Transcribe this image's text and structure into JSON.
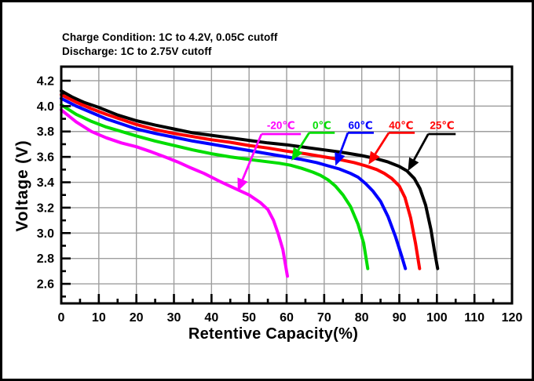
{
  "conditions": {
    "line1": "Charge Condition: 1C to 4.2V, 0.05C cutoff",
    "line2": "Discharge: 1C to 2.75V cutoff"
  },
  "chart_data": {
    "type": "line",
    "title": "",
    "xlabel": "Retentive Capacity(%)",
    "ylabel": "Voltage (V)",
    "xlim": [
      0,
      120
    ],
    "ylim": [
      2.446,
      4.311
    ],
    "grid": true,
    "grid_color": "#9e9e9e",
    "frame_color": "#000000",
    "x_ticks": [
      0,
      10,
      20,
      30,
      40,
      50,
      60,
      70,
      80,
      90,
      100,
      110,
      120
    ],
    "x_minor_ticks": [
      5,
      15,
      25,
      35,
      45,
      55,
      65,
      75,
      85,
      95,
      105,
      115
    ],
    "y_tick_values": [
      4.2,
      4.0,
      3.8,
      3.6,
      3.4,
      3.2,
      3.0,
      2.8,
      2.6
    ],
    "y_tick_labels": [
      "4.2",
      "4.0",
      "3.8",
      "3.6",
      "3.4",
      "3.2",
      "3.0",
      "2.8",
      "2.6"
    ],
    "y_minor_ticks": [
      4.3,
      4.1,
      3.9,
      3.7,
      3.5,
      3.3,
      3.1,
      2.9,
      2.7,
      2.5
    ],
    "legend_position": "inline-arrows",
    "series": [
      {
        "name": "25℃",
        "color": "#000000",
        "points": [
          [
            0,
            4.12
          ],
          [
            3,
            4.07
          ],
          [
            6,
            4.03
          ],
          [
            10,
            3.99
          ],
          [
            15,
            3.93
          ],
          [
            20,
            3.885
          ],
          [
            25,
            3.85
          ],
          [
            30,
            3.82
          ],
          [
            35,
            3.79
          ],
          [
            40,
            3.77
          ],
          [
            45,
            3.75
          ],
          [
            50,
            3.73
          ],
          [
            55,
            3.71
          ],
          [
            60,
            3.695
          ],
          [
            65,
            3.675
          ],
          [
            70,
            3.655
          ],
          [
            75,
            3.635
          ],
          [
            80,
            3.61
          ],
          [
            84,
            3.585
          ],
          [
            87,
            3.56
          ],
          [
            90,
            3.525
          ],
          [
            92,
            3.49
          ],
          [
            94,
            3.43
          ],
          [
            95.5,
            3.35
          ],
          [
            97,
            3.22
          ],
          [
            98.4,
            3.03
          ],
          [
            99.4,
            2.85
          ],
          [
            100.2,
            2.72
          ]
        ]
      },
      {
        "name": "40℃",
        "color": "#ff0000",
        "points": [
          [
            0,
            4.09
          ],
          [
            4,
            4.03
          ],
          [
            8,
            3.98
          ],
          [
            12,
            3.935
          ],
          [
            16,
            3.895
          ],
          [
            20,
            3.855
          ],
          [
            25,
            3.815
          ],
          [
            30,
            3.785
          ],
          [
            35,
            3.76
          ],
          [
            40,
            3.735
          ],
          [
            45,
            3.715
          ],
          [
            50,
            3.69
          ],
          [
            55,
            3.67
          ],
          [
            60,
            3.645
          ],
          [
            65,
            3.625
          ],
          [
            70,
            3.6
          ],
          [
            74,
            3.58
          ],
          [
            78,
            3.555
          ],
          [
            81,
            3.53
          ],
          [
            84,
            3.5
          ],
          [
            86,
            3.47
          ],
          [
            88,
            3.43
          ],
          [
            90,
            3.37
          ],
          [
            91.5,
            3.28
          ],
          [
            93,
            3.12
          ],
          [
            94.3,
            2.92
          ],
          [
            95.4,
            2.72
          ]
        ]
      },
      {
        "name": "60℃",
        "color": "#0000ff",
        "points": [
          [
            0,
            4.06
          ],
          [
            4,
            4.0
          ],
          [
            8,
            3.95
          ],
          [
            12,
            3.9
          ],
          [
            16,
            3.86
          ],
          [
            20,
            3.82
          ],
          [
            25,
            3.785
          ],
          [
            30,
            3.755
          ],
          [
            35,
            3.725
          ],
          [
            40,
            3.7
          ],
          [
            45,
            3.675
          ],
          [
            50,
            3.65
          ],
          [
            55,
            3.625
          ],
          [
            60,
            3.6
          ],
          [
            64,
            3.58
          ],
          [
            68,
            3.555
          ],
          [
            71,
            3.53
          ],
          [
            74,
            3.505
          ],
          [
            77,
            3.47
          ],
          [
            79,
            3.44
          ],
          [
            81,
            3.39
          ],
          [
            83,
            3.33
          ],
          [
            85,
            3.25
          ],
          [
            87,
            3.13
          ],
          [
            89,
            2.97
          ],
          [
            90.6,
            2.82
          ],
          [
            91.6,
            2.72
          ]
        ]
      },
      {
        "name": "0℃",
        "color": "#00dd00",
        "points": [
          [
            0,
            4.01
          ],
          [
            4,
            3.935
          ],
          [
            8,
            3.88
          ],
          [
            12,
            3.835
          ],
          [
            16,
            3.8
          ],
          [
            20,
            3.765
          ],
          [
            25,
            3.725
          ],
          [
            30,
            3.69
          ],
          [
            35,
            3.655
          ],
          [
            40,
            3.625
          ],
          [
            45,
            3.6
          ],
          [
            50,
            3.58
          ],
          [
            54,
            3.565
          ],
          [
            58,
            3.55
          ],
          [
            61,
            3.535
          ],
          [
            64,
            3.51
          ],
          [
            67,
            3.48
          ],
          [
            69,
            3.455
          ],
          [
            71,
            3.42
          ],
          [
            73,
            3.37
          ],
          [
            75,
            3.3
          ],
          [
            77,
            3.21
          ],
          [
            79,
            3.07
          ],
          [
            80.5,
            2.92
          ],
          [
            81.6,
            2.72
          ]
        ]
      },
      {
        "name": "-20℃",
        "color": "#ff00ff",
        "points": [
          [
            0,
            3.97
          ],
          [
            4,
            3.875
          ],
          [
            8,
            3.8
          ],
          [
            12,
            3.75
          ],
          [
            16,
            3.71
          ],
          [
            20,
            3.68
          ],
          [
            24,
            3.64
          ],
          [
            28,
            3.595
          ],
          [
            31,
            3.56
          ],
          [
            34,
            3.52
          ],
          [
            38,
            3.47
          ],
          [
            42,
            3.41
          ],
          [
            46,
            3.355
          ],
          [
            50,
            3.3
          ],
          [
            53,
            3.24
          ],
          [
            55,
            3.185
          ],
          [
            56.5,
            3.1
          ],
          [
            57.8,
            2.99
          ],
          [
            59,
            2.87
          ],
          [
            60.2,
            2.66
          ]
        ]
      }
    ],
    "annotations": [
      {
        "label": "-20℃",
        "text_color": "#ff00ff",
        "arrow_color": "#ff00ff",
        "label_at": [
          58.5,
          3.85
        ],
        "underline": [
          53.3,
          63.8,
          3.78
        ],
        "tip": [
          47.0,
          3.33
        ]
      },
      {
        "label": "0℃",
        "text_color": "#00dd00",
        "arrow_color": "#00dd00",
        "label_at": [
          69.4,
          3.85
        ],
        "underline": [
          66.0,
          72.8,
          3.79
        ],
        "tip": [
          61.3,
          3.57
        ]
      },
      {
        "label": "60℃",
        "text_color": "#0000ff",
        "arrow_color": "#0000ff",
        "label_at": [
          79.7,
          3.85
        ],
        "underline": [
          76.3,
          83.2,
          3.79
        ],
        "tip": [
          73.0,
          3.53
        ]
      },
      {
        "label": "40℃",
        "text_color": "#ff0000",
        "arrow_color": "#ff0000",
        "label_at": [
          90.5,
          3.85
        ],
        "underline": [
          87.2,
          94.1,
          3.79
        ],
        "tip": [
          81.8,
          3.54
        ]
      },
      {
        "label": "25℃",
        "text_color": "#ff0000",
        "arrow_color": "#000000",
        "label_at": [
          101.4,
          3.85
        ],
        "underline": [
          97.7,
          105.0,
          3.78
        ],
        "tip": [
          92.3,
          3.49
        ]
      }
    ]
  }
}
